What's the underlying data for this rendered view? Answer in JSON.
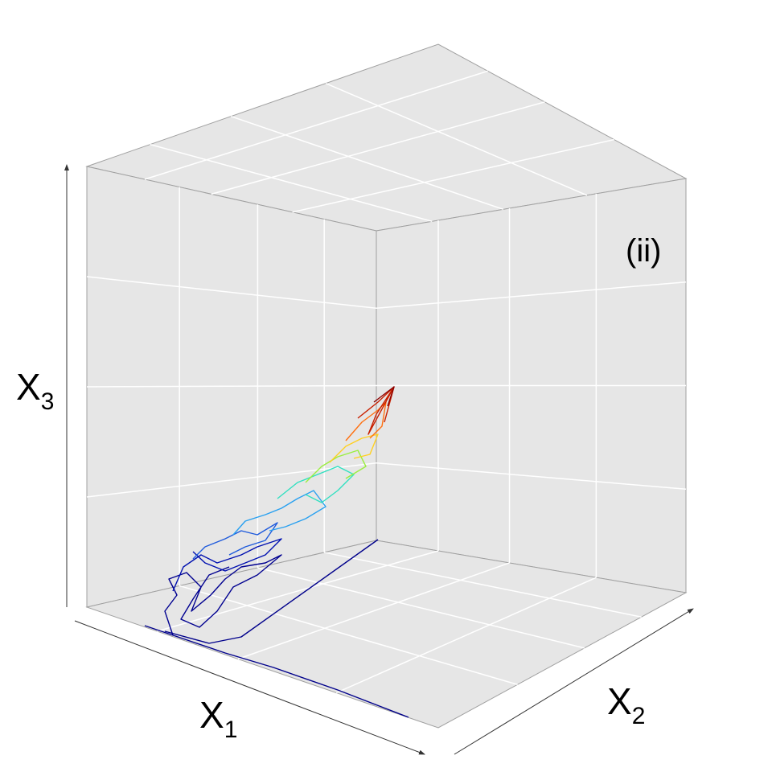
{
  "axes": {
    "x1": {
      "main": "X",
      "sub": "1"
    },
    "x2": {
      "main": "X",
      "sub": "2"
    },
    "x3": {
      "main": "X",
      "sub": "3"
    }
  },
  "annotation": "(ii)"
}
